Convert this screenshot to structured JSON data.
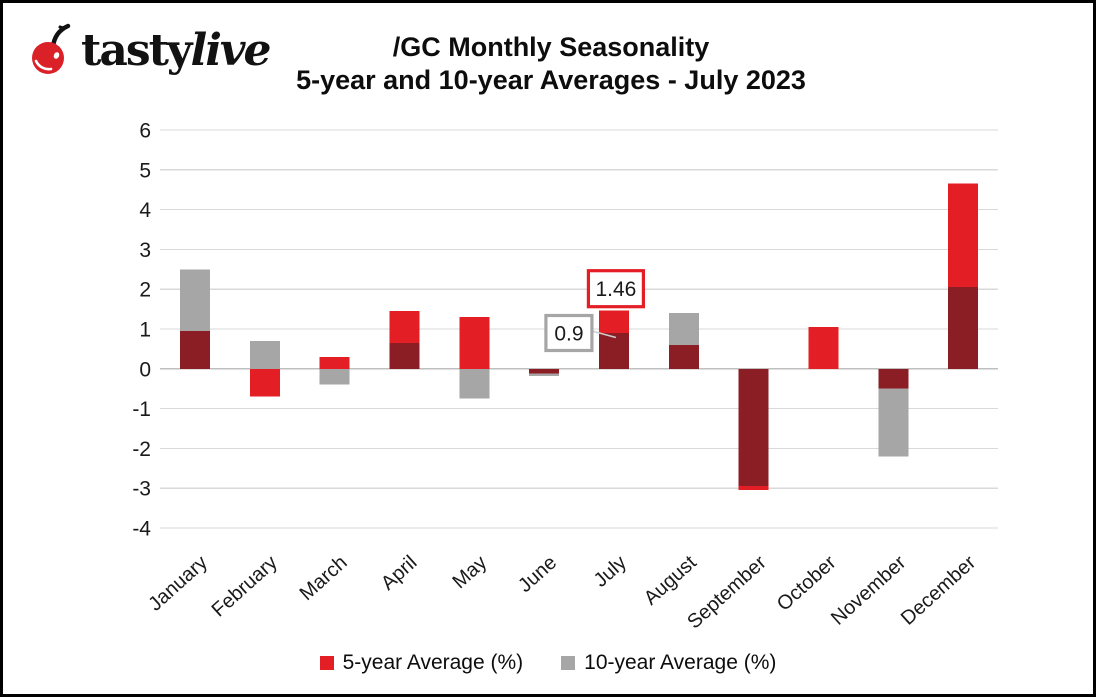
{
  "logo": {
    "brand_part1": "tasty",
    "brand_part2": "live",
    "cherry_color": "#da2128"
  },
  "header": {
    "title_line1": "/GC Monthly Seasonality",
    "title_line2": "5-year and 10-year Averages - July 2023"
  },
  "chart_data": {
    "type": "bar",
    "title": "/GC Monthly Seasonality 5-year and 10-year Averages - July 2023",
    "categories": [
      "January",
      "February",
      "March",
      "April",
      "May",
      "June",
      "July",
      "August",
      "September",
      "October",
      "November",
      "December"
    ],
    "series": [
      {
        "name": "5-year Average (%)",
        "color": "#e41e25",
        "values": [
          0.95,
          -0.7,
          0.3,
          1.45,
          1.3,
          -0.12,
          1.46,
          0.6,
          -3.05,
          1.05,
          -0.5,
          4.65
        ]
      },
      {
        "name": "10-year Average (%)",
        "color": "#a6a6a6",
        "values": [
          2.5,
          0.7,
          -0.4,
          0.65,
          -0.75,
          -0.18,
          0.9,
          1.4,
          -2.95,
          0,
          -2.2,
          2.05
        ]
      }
    ],
    "overlap_color": "#8b1e24",
    "ylim": [
      -4,
      6
    ],
    "yticks": [
      6,
      5,
      4,
      3,
      2,
      1,
      0,
      -1,
      -2,
      -3,
      -4
    ],
    "grid": true,
    "gridline_color": "#d9d9d9",
    "zeroline_color": "#bfbfbf",
    "legend_position": "bottom",
    "annotations": [
      {
        "text": "1.46",
        "month_index": 6,
        "value": 1.46,
        "border_color": "#e41e25",
        "position": "above"
      },
      {
        "text": "0.9",
        "month_index": 6,
        "value": 0.9,
        "border_color": "#a6a6a6",
        "position": "left"
      }
    ]
  },
  "legend": {
    "items": [
      {
        "label": "5-year Average (%)",
        "color": "#e41e25"
      },
      {
        "label": "10-year Average (%)",
        "color": "#a6a6a6"
      }
    ]
  }
}
